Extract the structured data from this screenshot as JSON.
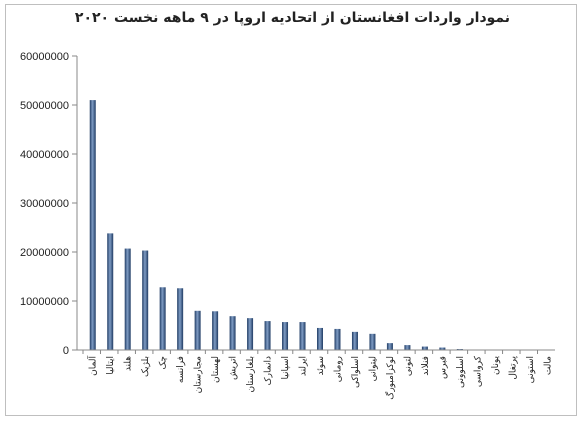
{
  "chart_data": {
    "type": "bar",
    "title": "نمودار واردات افغانستان از اتحادیه اروپا در ۹ ماهه نخست ۲۰۲۰",
    "xlabel": "",
    "ylabel": "",
    "ylim": [
      0,
      60000000
    ],
    "yticks": [
      "0",
      "10000000",
      "20000000",
      "30000000",
      "40000000",
      "50000000",
      "60000000"
    ],
    "grid": false,
    "legend": "none",
    "colors": {
      "bar": "#1f3b63",
      "bar_highlight": "#7f9cc4"
    },
    "categories": [
      "آلمان",
      "ایتالیا",
      "هلند",
      "بلژیک",
      "چک",
      "فرانسه",
      "مجارستان",
      "لهستان",
      "اتریش",
      "بلغارستان",
      "دانمارک",
      "اسپانیا",
      "ایرلند",
      "سوئد",
      "رومانی",
      "اسلواکی",
      "لیتوانی",
      "لوکزامبورگ",
      "لتونی",
      "فنلاند",
      "قبرس",
      "اسلوونی",
      "کرواسی",
      "یونان",
      "پرتغال",
      "استونی",
      "مالت"
    ],
    "values": [
      51000000,
      23800000,
      20700000,
      20300000,
      12800000,
      12600000,
      8000000,
      7900000,
      6900000,
      6500000,
      5900000,
      5700000,
      5700000,
      4500000,
      4300000,
      3700000,
      3300000,
      1400000,
      1000000,
      700000,
      500000,
      200000,
      50000,
      30000,
      20000,
      10000,
      5000
    ]
  }
}
